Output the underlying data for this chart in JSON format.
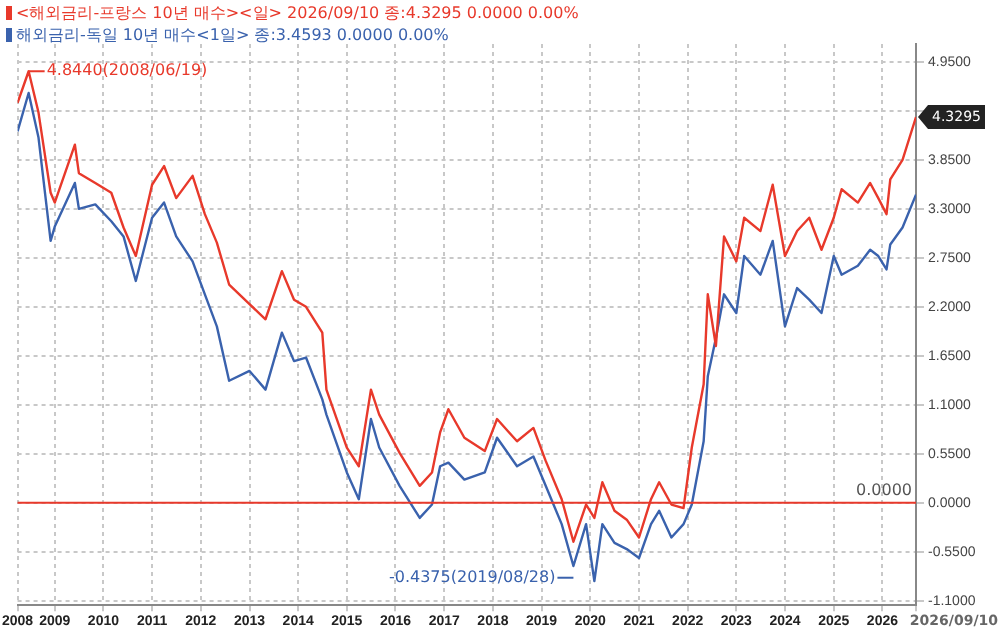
{
  "chart_data": {
    "type": "line",
    "x": [
      "2008-03-28",
      "2008-06-19",
      "2008-09",
      "2008-12",
      "2009-01",
      "2009-06",
      "2009-07",
      "2009-11",
      "2010-03",
      "2010-06",
      "2010-09",
      "2011-01",
      "2011-04",
      "2011-07",
      "2011-11",
      "2012-02",
      "2012-05",
      "2012-08",
      "2013-01",
      "2013-05",
      "2013-09",
      "2013-12",
      "2014-03",
      "2014-07",
      "2014-08",
      "2015-01",
      "2015-04",
      "2015-07",
      "2015-09",
      "2016-02",
      "2016-07",
      "2016-10",
      "2016-12",
      "2017-02",
      "2017-06",
      "2017-11",
      "2018-02",
      "2018-07",
      "2018-11",
      "2019-02",
      "2019-06",
      "2019-08-28",
      "2019-12",
      "2020-02",
      "2020-04",
      "2020-07",
      "2020-10",
      "2021-01",
      "2021-04",
      "2021-06",
      "2021-09",
      "2021-12",
      "2022-02",
      "2022-05",
      "2022-06",
      "2022-08",
      "2022-10",
      "2023-01",
      "2023-03",
      "2023-07",
      "2023-10",
      "2024-01",
      "2024-04",
      "2024-07",
      "2024-10",
      "2025-01",
      "2025-03",
      "2025-07",
      "2025-10",
      "2025-12",
      "2026-02",
      "2026-03",
      "2026-06",
      "2026-09-10"
    ],
    "series": [
      {
        "name": "<해외금리-프랑스 10년 매수><일> 2026/09/10 종:4.3295 0.0000 0.00%",
        "color": "#e8392b",
        "values": [
          4.49,
          4.844,
          4.38,
          3.48,
          3.37,
          4.02,
          3.7,
          3.59,
          3.48,
          3.09,
          2.77,
          3.57,
          3.78,
          3.42,
          3.67,
          3.24,
          2.92,
          2.45,
          2.23,
          2.06,
          2.6,
          2.28,
          2.2,
          1.91,
          1.27,
          0.62,
          0.41,
          1.27,
          0.99,
          0.56,
          0.19,
          0.34,
          0.79,
          1.05,
          0.73,
          0.58,
          0.94,
          0.69,
          0.84,
          0.47,
          0.04,
          -0.4375,
          -0.02,
          -0.17,
          0.23,
          -0.09,
          -0.19,
          -0.39,
          0.04,
          0.23,
          -0.02,
          -0.06,
          0.62,
          1.33,
          2.34,
          1.76,
          2.99,
          2.71,
          3.2,
          3.05,
          3.57,
          2.77,
          3.05,
          3.2,
          2.84,
          3.2,
          3.52,
          3.37,
          3.59,
          3.42,
          3.24,
          3.63,
          3.85,
          4.3295
        ]
      },
      {
        "name": "해외금리-독일 10년 매수<1일> 종:3.4593 0.0000 0.00%",
        "color": "#3a62ad",
        "values": [
          4.17,
          4.6,
          4.1,
          2.94,
          3.1,
          3.59,
          3.3,
          3.35,
          3.16,
          2.99,
          2.49,
          3.2,
          3.37,
          2.99,
          2.71,
          2.34,
          1.98,
          1.37,
          1.48,
          1.27,
          1.91,
          1.59,
          1.63,
          1.16,
          0.99,
          0.34,
          0.04,
          0.94,
          0.62,
          0.19,
          -0.17,
          -0.02,
          0.41,
          0.45,
          0.26,
          0.34,
          0.73,
          0.41,
          0.52,
          0.19,
          -0.24,
          -0.71,
          -0.24,
          -0.88,
          -0.24,
          -0.45,
          -0.52,
          -0.62,
          -0.24,
          -0.09,
          -0.39,
          -0.24,
          -0.02,
          0.69,
          1.42,
          1.85,
          2.34,
          2.13,
          2.77,
          2.56,
          2.94,
          1.98,
          2.41,
          2.28,
          2.13,
          2.77,
          2.56,
          2.66,
          2.84,
          2.77,
          2.62,
          2.9,
          3.09,
          3.4593
        ]
      }
    ],
    "xlim": [
      "2008-03-28",
      "2026-09-10"
    ],
    "xticks": [
      {
        "value": "2008-03-28",
        "label": "2008"
      },
      {
        "value": "2009-01-01",
        "label": "2009"
      },
      {
        "value": "2010-01-01",
        "label": "2010"
      },
      {
        "value": "2011-01-01",
        "label": "2011"
      },
      {
        "value": "2012-01-01",
        "label": "2012"
      },
      {
        "value": "2013-01-01",
        "label": "2013"
      },
      {
        "value": "2014-01-01",
        "label": "2014"
      },
      {
        "value": "2015-01-01",
        "label": "2015"
      },
      {
        "value": "2016-01-01",
        "label": "2016"
      },
      {
        "value": "2017-01-01",
        "label": "2017"
      },
      {
        "value": "2018-01-01",
        "label": "2018"
      },
      {
        "value": "2019-01-01",
        "label": "2019"
      },
      {
        "value": "2020-01-01",
        "label": "2020"
      },
      {
        "value": "2021-01-01",
        "label": "2021"
      },
      {
        "value": "2022-01-01",
        "label": "2022"
      },
      {
        "value": "2023-01-01",
        "label": "2023"
      },
      {
        "value": "2024-01-01",
        "label": "2024"
      },
      {
        "value": "2025-01-01",
        "label": "2025"
      },
      {
        "value": "2026-01-01",
        "label": "2026"
      },
      {
        "value": "2026-09-10",
        "label": null
      }
    ],
    "ylim": [
      -1.15,
      5.15
    ],
    "yticks": [
      {
        "value": -1.1,
        "label": "-1.1000"
      },
      {
        "value": -0.55,
        "label": "-0.5500"
      },
      {
        "value": 0,
        "label": "0.0000"
      },
      {
        "value": 0.55,
        "label": "0.5500"
      },
      {
        "value": 1.1,
        "label": "1.1000"
      },
      {
        "value": 1.65,
        "label": "1.6500"
      },
      {
        "value": 2.2,
        "label": "2.2000"
      },
      {
        "value": 2.75,
        "label": "2.7500"
      },
      {
        "value": 3.3,
        "label": "3.3000"
      },
      {
        "value": 3.85,
        "label": "3.8500"
      },
      {
        "value": 4.4,
        "label": null
      },
      {
        "value": 4.95,
        "label": "4.9500"
      }
    ],
    "ref_lines": [
      {
        "axis": "y",
        "value": 0,
        "label": "0.0000",
        "color": "#e8392b"
      }
    ],
    "annotations": [
      {
        "text": "4.8440(2008/06/19)",
        "x": "2008-06-19",
        "y": 4.844
      },
      {
        "text": "-0.4375(2019/08/28)",
        "x": "2019-08-28",
        "y": -0.4375
      },
      {
        "text": "4.3295",
        "x": "2026-09-10",
        "y": 4.3295
      },
      "2026/09/10"
    ],
    "grid": true,
    "legend": "top left",
    "marker": "none",
    "line_style": "solid"
  }
}
